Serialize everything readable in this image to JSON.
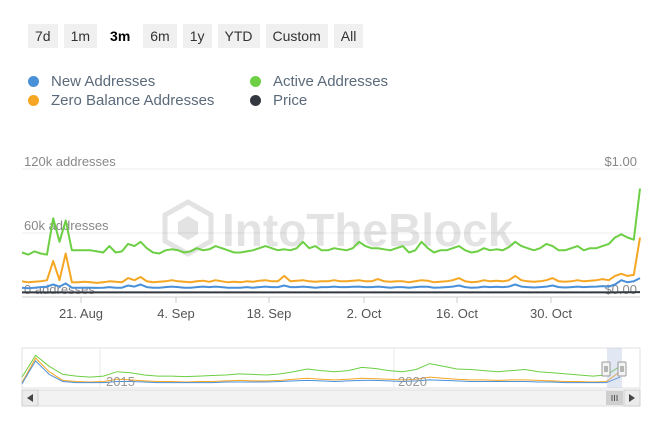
{
  "range_buttons": [
    "7d",
    "1m",
    "3m",
    "6m",
    "1y",
    "YTD",
    "Custom",
    "All"
  ],
  "range_selected": "3m",
  "legend": [
    {
      "label": "New Addresses",
      "color": "#4a90d9"
    },
    {
      "label": "Active Addresses",
      "color": "#6ccf44"
    },
    {
      "label": "Zero Balance Addresses",
      "color": "#f5a623"
    },
    {
      "label": "Price",
      "color": "#333840"
    }
  ],
  "watermark": "IntoTheBlock",
  "chart_data": {
    "type": "line",
    "x_tick_labels": [
      "21. Aug",
      "4. Sep",
      "18. Sep",
      "2. Oct",
      "16. Oct",
      "30. Oct"
    ],
    "y_left": {
      "ticks": [
        "0 addresses",
        "60k addresses",
        "120k addresses"
      ],
      "ylim": [
        0,
        120000
      ]
    },
    "y_right": {
      "ticks": [
        "$0.00",
        "$1.00"
      ],
      "ylim": [
        0,
        1
      ]
    },
    "grid": true,
    "legend_position": "top-left",
    "series": [
      {
        "name": "Active Addresses",
        "color": "#6ccf44",
        "axis": "left",
        "values": [
          38000,
          36000,
          39000,
          37000,
          36000,
          70000,
          48000,
          68000,
          40000,
          40000,
          40000,
          40000,
          39000,
          38000,
          44000,
          38000,
          39000,
          46000,
          44000,
          48000,
          42000,
          38000,
          37000,
          40000,
          41000,
          40000,
          38000,
          39000,
          42000,
          40000,
          41000,
          44000,
          42000,
          40000,
          38000,
          38000,
          39000,
          40000,
          42000,
          44000,
          42000,
          40000,
          41000,
          40000,
          42000,
          48000,
          42000,
          44000,
          40000,
          40000,
          42000,
          41000,
          40000,
          42000,
          48000,
          44000,
          42000,
          42000,
          41000,
          40000,
          42000,
          44000,
          38000,
          40000,
          48000,
          42000,
          38000,
          40000,
          40000,
          42000,
          44000,
          40000,
          38000,
          39000,
          42000,
          40000,
          41000,
          40000,
          43000,
          48000,
          44000,
          42000,
          40000,
          42000,
          46000,
          44000,
          40000,
          40000,
          42000,
          44000,
          40000,
          42000,
          42000,
          44000,
          46000,
          52000,
          55000,
          52000,
          50000,
          98000
        ]
      },
      {
        "name": "Zero Balance Addresses",
        "color": "#f5a623",
        "axis": "left",
        "values": [
          11000,
          10000,
          10500,
          11000,
          12000,
          30000,
          12000,
          37000,
          10000,
          10000,
          10500,
          10000,
          9500,
          10000,
          11000,
          10500,
          10000,
          14000,
          12000,
          15000,
          11000,
          10000,
          10500,
          11000,
          12000,
          11000,
          10500,
          10000,
          11000,
          11500,
          10500,
          12000,
          11000,
          10000,
          10500,
          10000,
          11000,
          10500,
          11500,
          12000,
          11000,
          11000,
          16000,
          11000,
          11500,
          12000,
          11000,
          10500,
          11000,
          11000,
          12000,
          11000,
          11000,
          11500,
          12000,
          11000,
          11000,
          13000,
          11000,
          10500,
          11000,
          11000,
          10000,
          11000,
          12000,
          11500,
          10000,
          10500,
          11000,
          12000,
          14000,
          11000,
          10000,
          10500,
          12000,
          11000,
          11500,
          11000,
          12000,
          16000,
          12000,
          11000,
          10500,
          11000,
          12000,
          14000,
          11000,
          10500,
          11000,
          12000,
          11000,
          11500,
          12000,
          13000,
          12000,
          16000,
          18000,
          16000,
          17000,
          52000
        ]
      },
      {
        "name": "New Addresses",
        "color": "#4a90d9",
        "axis": "left",
        "values": [
          5000,
          4500,
          5000,
          5500,
          6000,
          8000,
          6000,
          9000,
          5000,
          5000,
          5000,
          5000,
          4800,
          5000,
          5500,
          5000,
          5000,
          7000,
          6000,
          8000,
          5500,
          5000,
          5000,
          5500,
          6000,
          5500,
          5000,
          5000,
          5500,
          6000,
          5500,
          6000,
          5500,
          5000,
          5000,
          5000,
          5500,
          5000,
          5500,
          6000,
          5500,
          5500,
          7000,
          5500,
          5500,
          6000,
          5500,
          5000,
          5500,
          5500,
          6000,
          5500,
          5500,
          5800,
          6000,
          5500,
          5500,
          6000,
          5500,
          5000,
          5500,
          5500,
          5000,
          5500,
          6000,
          5800,
          5000,
          5200,
          5500,
          6000,
          7000,
          5500,
          5000,
          5200,
          6000,
          5500,
          5800,
          5500,
          6000,
          8000,
          6000,
          5500,
          5200,
          5500,
          6000,
          7000,
          5500,
          5200,
          5500,
          6000,
          5500,
          5800,
          6000,
          6500,
          6000,
          8000,
          12000,
          10000,
          11000,
          14000
        ]
      },
      {
        "name": "Price",
        "color": "#333840",
        "axis": "right",
        "values": [
          0.005,
          0.005,
          0.005,
          0.005,
          0.005,
          0.005,
          0.005,
          0.005,
          0.005,
          0.005,
          0.005,
          0.005,
          0.005,
          0.005,
          0.005,
          0.005,
          0.005,
          0.005,
          0.005,
          0.005,
          0.005,
          0.005,
          0.005,
          0.005,
          0.005,
          0.005,
          0.005,
          0.005,
          0.005,
          0.005,
          0.005,
          0.005,
          0.005,
          0.005,
          0.005,
          0.005,
          0.005,
          0.005,
          0.005,
          0.005,
          0.005,
          0.005,
          0.005,
          0.005,
          0.005,
          0.005,
          0.005,
          0.005,
          0.005,
          0.005,
          0.005,
          0.005,
          0.005,
          0.005,
          0.005,
          0.005,
          0.005,
          0.005,
          0.005,
          0.005,
          0.005,
          0.005,
          0.005,
          0.005,
          0.005,
          0.005,
          0.005,
          0.005,
          0.005,
          0.005,
          0.005,
          0.005,
          0.005,
          0.005,
          0.005,
          0.005,
          0.005,
          0.005,
          0.005,
          0.005,
          0.005,
          0.005,
          0.005,
          0.005,
          0.005,
          0.005,
          0.005,
          0.005,
          0.005,
          0.005,
          0.005,
          0.005,
          0.005,
          0.005,
          0.005,
          0.005,
          0.006,
          0.006,
          0.006,
          0.007
        ]
      }
    ],
    "navigator": {
      "x_tick_labels": [
        "2015",
        "2020"
      ],
      "series": [
        {
          "name": "Active Addresses",
          "color": "#6ccf44",
          "values": [
            20,
            60,
            40,
            25,
            22,
            20,
            22,
            30,
            28,
            24,
            22,
            22,
            21,
            22,
            23,
            24,
            26,
            25,
            24,
            26,
            30,
            35,
            32,
            30,
            32,
            38,
            36,
            32,
            30,
            34,
            45,
            40,
            35,
            34,
            32,
            30,
            32,
            34,
            30,
            28,
            26,
            24,
            22,
            24,
            40
          ]
        },
        {
          "name": "Zero Balance Addresses",
          "color": "#f5a623",
          "values": [
            10,
            55,
            30,
            14,
            12,
            11,
            12,
            16,
            15,
            13,
            12,
            12,
            11,
            12,
            12,
            13,
            14,
            13,
            13,
            14,
            16,
            18,
            16,
            15,
            16,
            18,
            17,
            16,
            15,
            16,
            20,
            18,
            16,
            15,
            15,
            14,
            15,
            15,
            14,
            13,
            12,
            12,
            11,
            12,
            30
          ]
        },
        {
          "name": "New Addresses",
          "color": "#4a90d9",
          "values": [
            8,
            50,
            25,
            12,
            10,
            10,
            10,
            12,
            12,
            11,
            10,
            10,
            10,
            10,
            10,
            11,
            11,
            11,
            11,
            12,
            13,
            14,
            13,
            12,
            13,
            14,
            14,
            13,
            12,
            13,
            15,
            14,
            13,
            12,
            12,
            12,
            12,
            12,
            11,
            11,
            10,
            10,
            10,
            10,
            20
          ]
        }
      ]
    }
  }
}
